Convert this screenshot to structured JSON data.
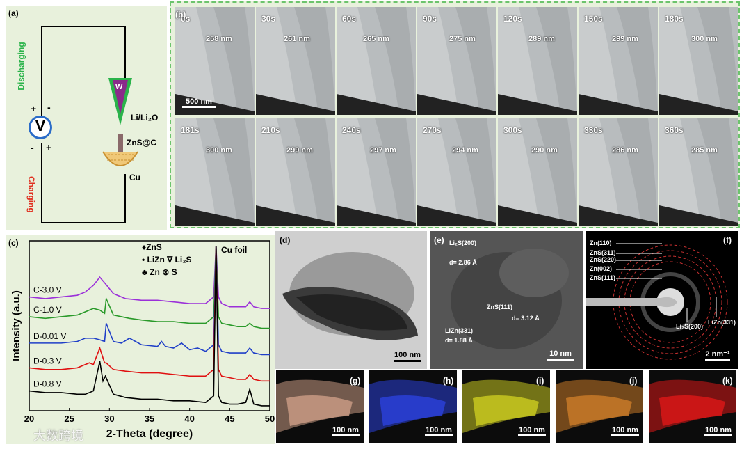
{
  "panel_a": {
    "label": "(a)",
    "discharging": "Discharging",
    "charging": "Charging",
    "voltmeter": "V",
    "plus_top": "+",
    "minus_top": "-",
    "minus_bottom": "-",
    "plus_bottom": "+",
    "tip": "W",
    "li_label": "Li/Li₂O",
    "znsc_label": "ZnS@C",
    "cu_label": "Cu",
    "colors": {
      "discharging": "#2ab34a",
      "charging": "#e03020",
      "tip": "#8a2a8a",
      "circle": "#2a6cc8"
    }
  },
  "panel_b": {
    "label": "(b)",
    "scale_bar": "500 nm",
    "frames": [
      {
        "time": "0s",
        "measure": "258 nm"
      },
      {
        "time": "30s",
        "measure": "261 nm"
      },
      {
        "time": "60s",
        "measure": "265 nm"
      },
      {
        "time": "90s",
        "measure": "275 nm"
      },
      {
        "time": "120s",
        "measure": "289 nm"
      },
      {
        "time": "150s",
        "measure": "299 nm"
      },
      {
        "time": "180s",
        "measure": "300 nm"
      },
      {
        "time": "181s",
        "measure": "300 nm"
      },
      {
        "time": "210s",
        "measure": "299 nm"
      },
      {
        "time": "240s",
        "measure": "297 nm"
      },
      {
        "time": "270s",
        "measure": "294 nm"
      },
      {
        "time": "300s",
        "measure": "290 nm"
      },
      {
        "time": "330s",
        "measure": "286 nm"
      },
      {
        "time": "360s",
        "measure": "285 nm"
      }
    ]
  },
  "panel_c": {
    "label": "(c)",
    "cu_foil": "Cu foil",
    "legend_zns": "♦ZnS",
    "legend_lizn": "• LiZn ∇ Li₂S",
    "legend_zn": "♣ Zn  ⊗ S",
    "curves": [
      {
        "name": "C-3.0 V",
        "color": "#9b30d9"
      },
      {
        "name": "C-1.0 V",
        "color": "#2a9a2a"
      },
      {
        "name": "D-0.01 V",
        "color": "#1f3fc8"
      },
      {
        "name": "D-0.3 V",
        "color": "#e01010"
      },
      {
        "name": "D-0.8 V",
        "color": "#000000"
      }
    ]
  },
  "chart_data": {
    "type": "line",
    "title": "",
    "xlabel": "2-Theta (degree)",
    "ylabel": "Intensity (a.u.)",
    "xlim": [
      20,
      50
    ],
    "xticks": [
      "20",
      "25",
      "30",
      "35",
      "40",
      "45",
      "50"
    ],
    "series": [
      {
        "name": "C-3.0 V",
        "x": [
          20,
          22,
          24,
          26,
          27,
          28,
          28.8,
          29.5,
          30.5,
          32,
          34,
          36,
          38,
          40,
          42,
          43,
          43.3,
          43.6,
          44,
          45,
          46,
          47,
          47.5,
          48,
          49,
          50
        ],
        "y": [
          8.4,
          8.3,
          8.4,
          8.5,
          8.7,
          9.1,
          9.6,
          9.2,
          8.6,
          8.3,
          8.2,
          8.2,
          8.1,
          8.0,
          8.0,
          8.4,
          11.5,
          8.4,
          8.0,
          7.8,
          7.8,
          7.8,
          8.1,
          7.8,
          7.7,
          7.7
        ]
      },
      {
        "name": "C-1.0 V",
        "x": [
          20,
          22,
          24,
          26,
          27,
          28,
          28.8,
          29.4,
          29.6,
          30.5,
          31.5,
          32.5,
          34,
          36,
          38,
          40,
          42,
          43,
          43.3,
          43.6,
          44,
          45,
          46,
          47,
          47.5,
          48,
          49,
          50
        ],
        "y": [
          7.2,
          7.1,
          7.2,
          7.3,
          7.5,
          7.7,
          7.6,
          7.4,
          8.3,
          7.3,
          7.2,
          7.1,
          7.0,
          6.9,
          6.9,
          6.8,
          6.8,
          7.2,
          11.5,
          7.2,
          6.8,
          6.7,
          6.6,
          6.6,
          6.8,
          6.6,
          6.5,
          6.5
        ]
      },
      {
        "name": "D-0.01 V",
        "x": [
          20,
          22,
          24,
          26,
          27,
          28,
          28.8,
          29.4,
          29.6,
          30.5,
          31.5,
          32.5,
          34,
          36,
          36.5,
          37,
          38,
          39,
          40,
          41,
          42,
          43,
          43.3,
          43.6,
          44,
          45,
          46,
          47,
          47.5,
          48,
          49,
          50
        ],
        "y": [
          5.6,
          5.6,
          5.6,
          5.7,
          5.9,
          5.9,
          5.8,
          5.7,
          6.8,
          5.7,
          5.6,
          5.9,
          5.5,
          5.4,
          5.7,
          5.4,
          5.3,
          5.6,
          5.2,
          5.3,
          5.1,
          5.5,
          11.5,
          5.5,
          5.1,
          5.0,
          5.0,
          5.0,
          5.3,
          5.0,
          4.9,
          4.9
        ]
      },
      {
        "name": "D-0.3 V",
        "x": [
          20,
          22,
          24,
          26,
          27,
          27.5,
          28,
          28.8,
          29.4,
          29.6,
          30.5,
          32,
          34,
          36,
          38,
          40,
          42,
          43,
          43.3,
          43.6,
          44,
          45,
          46,
          47,
          47.5,
          48,
          49,
          50
        ],
        "y": [
          4.1,
          4.0,
          4.0,
          4.1,
          4.3,
          4.4,
          4.3,
          5.3,
          4.4,
          4.4,
          4.0,
          3.9,
          3.8,
          3.8,
          3.7,
          3.6,
          3.6,
          4.0,
          11.5,
          4.0,
          3.6,
          3.5,
          3.4,
          3.4,
          3.7,
          3.4,
          3.3,
          3.3
        ]
      },
      {
        "name": "D-0.8 V",
        "x": [
          20,
          22,
          24,
          26,
          27,
          28,
          28.8,
          29.2,
          29.5,
          30.5,
          32,
          34,
          36,
          38,
          40,
          42,
          43,
          43.3,
          43.6,
          44,
          45,
          46,
          47,
          47.5,
          48,
          49,
          50
        ],
        "y": [
          2.7,
          2.6,
          2.6,
          2.5,
          2.5,
          2.7,
          4.5,
          3.3,
          3.6,
          2.5,
          2.3,
          2.2,
          2.2,
          2.1,
          2.1,
          2.0,
          2.4,
          11.5,
          2.4,
          2.0,
          1.9,
          1.9,
          2.0,
          2.8,
          1.9,
          1.8,
          1.8
        ]
      }
    ]
  },
  "panel_d": {
    "label": "(d)",
    "scale": "100 nm"
  },
  "panel_e": {
    "label": "(e)",
    "li2s": "Li₂S(200)",
    "d1": "d= 2.86 Å",
    "zns": "ZnS(111)",
    "d2": "d= 3.12 Å",
    "lizn": "LiZn(331)",
    "d3": "d= 1.88 Å",
    "scale": "10 nm"
  },
  "panel_f": {
    "label": "(f)",
    "rings": [
      "Zn(110)",
      "ZnS(311)",
      "ZnS(220)",
      "Zn(002)",
      "ZnS(111)"
    ],
    "li2s": "Li₂S(200)",
    "lizn": "LiZn(331)",
    "scale": "2 nm⁻¹"
  },
  "maps": [
    {
      "label": "(g)",
      "scale": "100 nm",
      "color": "#c89a84"
    },
    {
      "label": "(h)",
      "scale": "100 nm",
      "color": "#2a3fd8"
    },
    {
      "label": "(i)",
      "scale": "100 nm",
      "color": "#c8c820"
    },
    {
      "label": "(j)",
      "scale": "100 nm",
      "color": "#c87a28"
    },
    {
      "label": "(k)",
      "scale": "100 nm",
      "color": "#d81818"
    }
  ],
  "watermark": "大数跨境"
}
